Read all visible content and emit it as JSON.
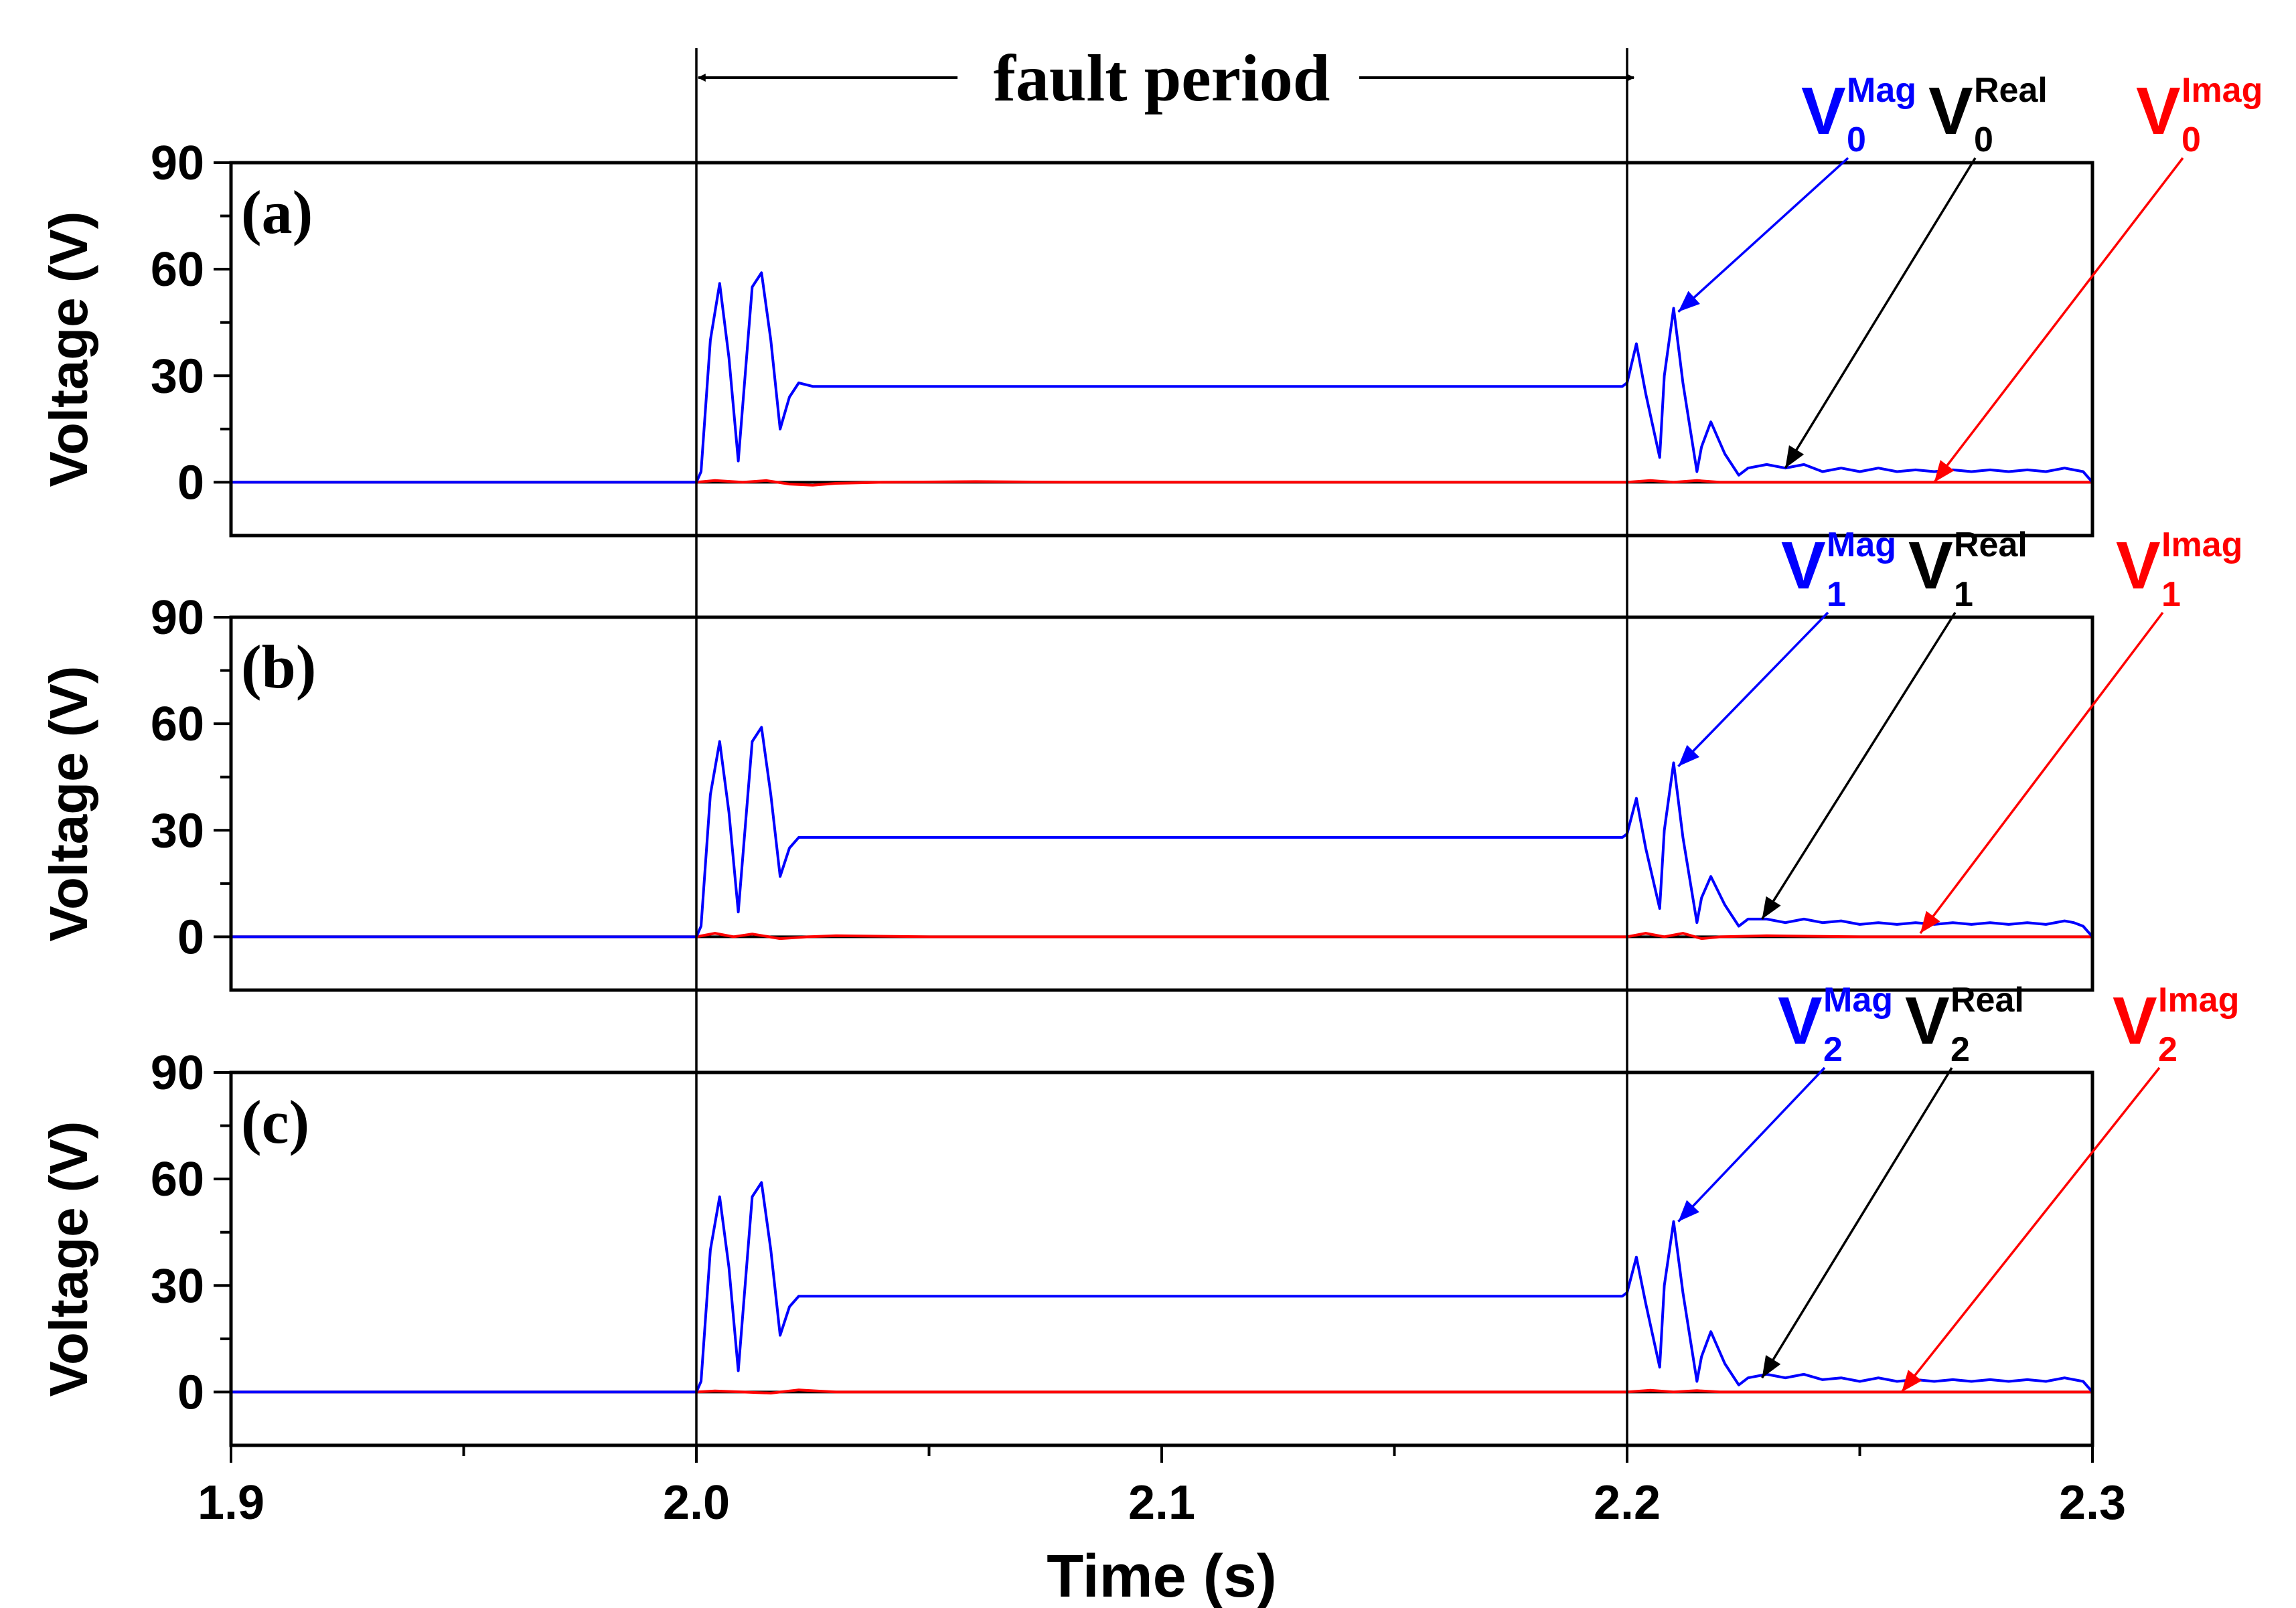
{
  "figure": {
    "fault_label": "fault period",
    "x_axis_title": "Time (s)",
    "x_ticks": [
      "1.9",
      "2.0",
      "2.1",
      "2.2",
      "2.3"
    ],
    "y_ticks": [
      "90",
      "60",
      "30",
      "0"
    ],
    "y_axis_title": "Voltage (V)",
    "colors": {
      "mag": "#0000ff",
      "real": "#000000",
      "imag": "#ff0000"
    }
  },
  "chart_data": [
    {
      "type": "line",
      "panel_label": "(a)",
      "xlim": [
        1.9,
        2.3
      ],
      "ylim": [
        -15,
        90
      ],
      "ylabel": "Voltage (V)",
      "fault_start": 2.0,
      "fault_end": 2.2,
      "annotations": [
        {
          "base": "V",
          "sub": "0",
          "sup": "Mag",
          "color": "#0000ff",
          "target_x": 2.211,
          "target_y": 48
        },
        {
          "base": "V",
          "sub": "0",
          "sup": "Real",
          "color": "#000000",
          "target_x": 2.234,
          "target_y": 4
        },
        {
          "base": "V",
          "sub": "0",
          "sup": "Imag",
          "color": "#ff0000",
          "target_x": 2.266,
          "target_y": 0
        }
      ],
      "series": [
        {
          "key": "mag",
          "color": "#0000ff",
          "x": [
            1.9,
            2.0,
            2.001,
            2.003,
            2.005,
            2.007,
            2.009,
            2.012,
            2.014,
            2.016,
            2.018,
            2.02,
            2.022,
            2.025,
            2.1,
            2.199,
            2.2,
            2.202,
            2.204,
            2.207,
            2.208,
            2.21,
            2.212,
            2.215,
            2.216,
            2.218,
            2.221,
            2.224,
            2.226,
            2.23,
            2.234,
            2.238,
            2.242,
            2.246,
            2.25,
            2.254,
            2.258,
            2.262,
            2.266,
            2.27,
            2.274,
            2.278,
            2.282,
            2.286,
            2.29,
            2.294,
            2.296,
            2.298,
            2.3
          ],
          "y": [
            0,
            0,
            3,
            40,
            56,
            35,
            6,
            55,
            59,
            40,
            15,
            24,
            28,
            27,
            27,
            27,
            28,
            39,
            25,
            7,
            30,
            49,
            28,
            3,
            10,
            17,
            8,
            2,
            4,
            5,
            4,
            5,
            3,
            4,
            3,
            4,
            3,
            3.5,
            3,
            3.5,
            3,
            3.5,
            3,
            3.5,
            3,
            4,
            3.5,
            3,
            0
          ]
        },
        {
          "key": "real",
          "color": "#000000",
          "x": [
            1.9,
            2.0,
            2.3
          ],
          "y": [
            0,
            0,
            0
          ]
        },
        {
          "key": "imag",
          "color": "#ff0000",
          "x": [
            1.9,
            2.0,
            2.004,
            2.01,
            2.015,
            2.02,
            2.025,
            2.03,
            2.04,
            2.06,
            2.08,
            2.1,
            2.15,
            2.2,
            2.205,
            2.21,
            2.215,
            2.22,
            2.23,
            2.25,
            2.3
          ],
          "y": [
            0,
            0,
            0.5,
            0,
            0.5,
            -0.5,
            -0.8,
            -0.3,
            0,
            0.2,
            0,
            0,
            0,
            0,
            0.5,
            0,
            0.5,
            0,
            0,
            0,
            0
          ]
        }
      ]
    },
    {
      "type": "line",
      "panel_label": "(b)",
      "xlim": [
        1.9,
        2.3
      ],
      "ylim": [
        -15,
        90
      ],
      "ylabel": "Voltage (V)",
      "fault_start": 2.0,
      "fault_end": 2.2,
      "annotations": [
        {
          "base": "V",
          "sub": "1",
          "sup": "Mag",
          "color": "#0000ff",
          "target_x": 2.211,
          "target_y": 48
        },
        {
          "base": "V",
          "sub": "1",
          "sup": "Real",
          "color": "#000000",
          "target_x": 2.229,
          "target_y": 5
        },
        {
          "base": "V",
          "sub": "1",
          "sup": "Imag",
          "color": "#ff0000",
          "target_x": 2.263,
          "target_y": 1
        }
      ],
      "series": [
        {
          "key": "mag",
          "color": "#0000ff",
          "x": [
            1.9,
            2.0,
            2.001,
            2.003,
            2.005,
            2.007,
            2.009,
            2.012,
            2.014,
            2.016,
            2.018,
            2.02,
            2.022,
            2.025,
            2.1,
            2.199,
            2.2,
            2.202,
            2.204,
            2.207,
            2.208,
            2.21,
            2.212,
            2.215,
            2.216,
            2.218,
            2.221,
            2.224,
            2.226,
            2.23,
            2.234,
            2.238,
            2.242,
            2.246,
            2.25,
            2.254,
            2.258,
            2.262,
            2.266,
            2.27,
            2.274,
            2.278,
            2.282,
            2.286,
            2.29,
            2.294,
            2.296,
            2.298,
            2.3
          ],
          "y": [
            0,
            0,
            3,
            40,
            55,
            35,
            7,
            55,
            59,
            40,
            17,
            25,
            28,
            28,
            28,
            28,
            29,
            39,
            25,
            8,
            30,
            49,
            28,
            4,
            11,
            17,
            9,
            3,
            5,
            5,
            4,
            5,
            4,
            4.5,
            3.5,
            4,
            3.5,
            4,
            3.5,
            4,
            3.5,
            4,
            3.5,
            4,
            3.5,
            4.5,
            4,
            3,
            0
          ]
        },
        {
          "key": "real",
          "color": "#000000",
          "x": [
            1.9,
            2.0,
            2.3
          ],
          "y": [
            0,
            0,
            0
          ]
        },
        {
          "key": "imag",
          "color": "#ff0000",
          "x": [
            1.9,
            2.0,
            2.004,
            2.008,
            2.012,
            2.018,
            2.024,
            2.03,
            2.05,
            2.1,
            2.2,
            2.204,
            2.208,
            2.212,
            2.216,
            2.22,
            2.23,
            2.25,
            2.3
          ],
          "y": [
            0,
            0,
            1,
            0,
            0.8,
            -0.5,
            0,
            0.3,
            0,
            0,
            0,
            1,
            0,
            1,
            -0.5,
            0,
            0.3,
            0,
            0
          ]
        }
      ]
    },
    {
      "type": "line",
      "panel_label": "(c)",
      "xlim": [
        1.9,
        2.3
      ],
      "ylim": [
        -15,
        90
      ],
      "ylabel": "Voltage (V)",
      "fault_start": 2.0,
      "fault_end": 2.2,
      "annotations": [
        {
          "base": "V",
          "sub": "2",
          "sup": "Mag",
          "color": "#0000ff",
          "target_x": 2.211,
          "target_y": 48
        },
        {
          "base": "V",
          "sub": "2",
          "sup": "Real",
          "color": "#000000",
          "target_x": 2.229,
          "target_y": 4
        },
        {
          "base": "V",
          "sub": "2",
          "sup": "Imag",
          "color": "#ff0000",
          "target_x": 2.259,
          "target_y": 0
        }
      ],
      "series": [
        {
          "key": "mag",
          "color": "#0000ff",
          "x": [
            1.9,
            2.0,
            2.001,
            2.003,
            2.005,
            2.007,
            2.009,
            2.012,
            2.014,
            2.016,
            2.018,
            2.02,
            2.022,
            2.025,
            2.1,
            2.199,
            2.2,
            2.202,
            2.204,
            2.207,
            2.208,
            2.21,
            2.212,
            2.215,
            2.216,
            2.218,
            2.221,
            2.224,
            2.226,
            2.23,
            2.234,
            2.238,
            2.242,
            2.246,
            2.25,
            2.254,
            2.258,
            2.262,
            2.266,
            2.27,
            2.274,
            2.278,
            2.282,
            2.286,
            2.29,
            2.294,
            2.296,
            2.298,
            2.3
          ],
          "y": [
            0,
            0,
            3,
            40,
            55,
            35,
            6,
            55,
            59,
            40,
            16,
            24,
            27,
            27,
            27,
            27,
            28,
            38,
            25,
            7,
            30,
            48,
            28,
            3,
            10,
            17,
            8,
            2,
            4,
            5,
            4,
            5,
            3.5,
            4,
            3,
            4,
            3,
            3.5,
            3,
            3.5,
            3,
            3.5,
            3,
            3.5,
            3,
            4,
            3.5,
            3,
            0
          ]
        },
        {
          "key": "real",
          "color": "#000000",
          "x": [
            1.9,
            2.0,
            2.3
          ],
          "y": [
            0,
            0,
            0
          ]
        },
        {
          "key": "imag",
          "color": "#ff0000",
          "x": [
            1.9,
            2.0,
            2.004,
            2.01,
            2.016,
            2.022,
            2.03,
            2.05,
            2.1,
            2.2,
            2.205,
            2.21,
            2.215,
            2.22,
            2.25,
            2.3
          ],
          "y": [
            0,
            0,
            0.3,
            0,
            -0.3,
            0.6,
            0,
            0,
            0,
            0,
            0.5,
            0,
            0.4,
            0,
            0,
            0
          ]
        }
      ]
    }
  ]
}
